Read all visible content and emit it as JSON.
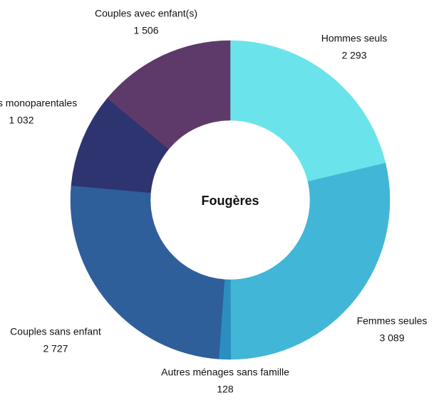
{
  "chart_data": {
    "type": "donut",
    "title": "Fougères",
    "categories": [
      "Hommes seuls",
      "Femmes seules",
      "Autres ménages sans famille",
      "Couples sans enfant",
      "Familles monoparentales",
      "Couples avec enfant(s)"
    ],
    "values": [
      2293,
      3089,
      128,
      2727,
      1032,
      1506
    ],
    "value_labels": [
      "2 293",
      "3 089",
      "128",
      "2 727",
      "1 032",
      "1 506"
    ],
    "colors": [
      "#6ae4ea",
      "#41b6d6",
      "#2a8fc0",
      "#2f5f9a",
      "#2e3470",
      "#5e3a6a"
    ]
  }
}
